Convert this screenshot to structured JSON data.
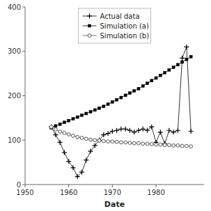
{
  "chart_data": {
    "type": "line",
    "xlabel": "Date",
    "x": [
      1956,
      1957,
      1958,
      1959,
      1960,
      1961,
      1962,
      1963,
      1964,
      1965,
      1966,
      1967,
      1968,
      1969,
      1970,
      1971,
      1972,
      1973,
      1974,
      1975,
      1976,
      1977,
      1978,
      1979,
      1980,
      1981,
      1982,
      1983,
      1984,
      1985,
      1986,
      1987,
      1988
    ],
    "series": [
      {
        "name": "Actual data",
        "color": "#000000",
        "marker": "plus",
        "line_style": "solid",
        "values": [
          130,
          112,
          95,
          72,
          52,
          38,
          18,
          28,
          55,
          75,
          88,
          100,
          112,
          115,
          120,
          122,
          125,
          125,
          122,
          118,
          122,
          125,
          122,
          130,
          95,
          118,
          92,
          122,
          118,
          122,
          285,
          310,
          120
        ]
      },
      {
        "name": "Simulation (a)",
        "color": "#000000",
        "marker": "square",
        "line_style": "solid",
        "values": [
          128,
          132,
          136,
          140,
          144,
          148,
          152,
          156,
          160,
          164,
          168,
          172,
          176,
          181,
          186,
          191,
          196,
          201,
          206,
          211,
          216,
          222,
          228,
          234,
          240,
          246,
          252,
          258,
          264,
          270,
          276,
          282,
          288
        ]
      },
      {
        "name": "Simulation (b)",
        "color": "#555555",
        "marker": "circle",
        "line_style": "solid",
        "values": [
          130,
          124,
          119,
          116,
          113,
          110,
          107,
          105,
          103,
          101,
          100,
          99,
          98,
          97,
          97,
          96,
          95,
          95,
          94,
          93,
          93,
          92,
          92,
          91,
          90,
          90,
          89,
          89,
          88,
          88,
          87,
          87,
          86
        ]
      }
    ],
    "xlim": [
      1950,
      1991
    ],
    "xticks": [
      1950,
      1960,
      1970,
      1980
    ],
    "ylim": [
      0,
      400
    ],
    "yticks": [
      0,
      100,
      200,
      300,
      400
    ],
    "grid": false,
    "legend": "upper center"
  }
}
